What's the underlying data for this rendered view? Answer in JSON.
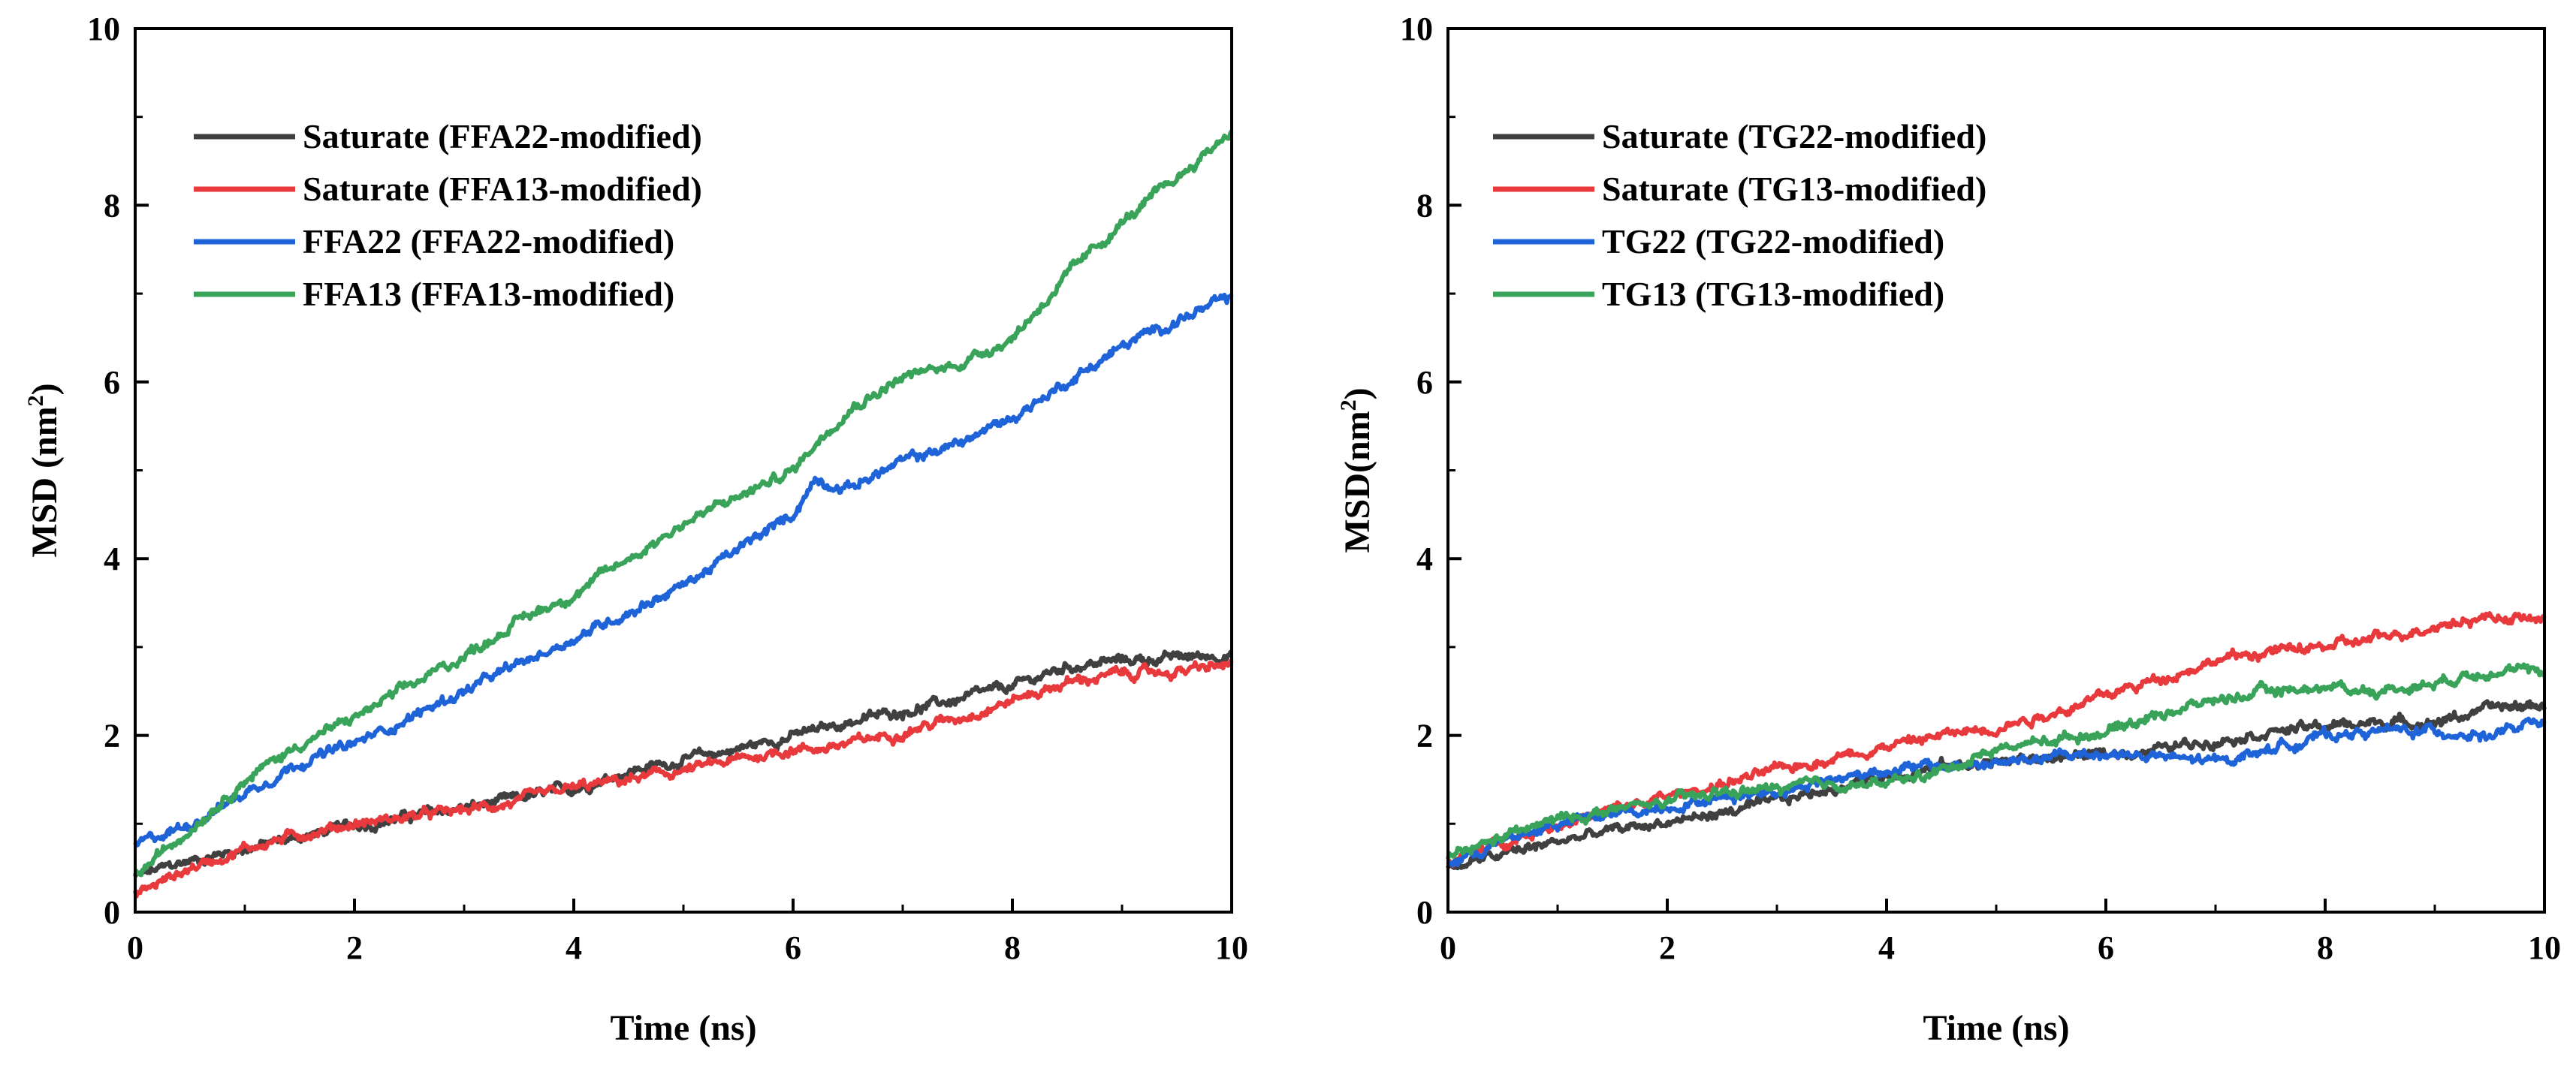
{
  "chart_data": [
    {
      "type": "line",
      "title": "",
      "xlabel": "Time (ns)",
      "ylabel": "MSD (nm",
      "ylabel_sup": "2",
      "ylabel_close": ")",
      "xlim": [
        0,
        10
      ],
      "ylim": [
        0,
        10
      ],
      "xticks": [
        0,
        2,
        4,
        6,
        8,
        10
      ],
      "yticks": [
        0,
        2,
        4,
        6,
        8,
        10
      ],
      "xtick_labels": [
        "0",
        "2",
        "4",
        "6",
        "8",
        "10"
      ],
      "ytick_labels": [
        "0",
        "2",
        "4",
        "6",
        "8",
        "10"
      ],
      "grid": false,
      "legend_position": "top-left",
      "x": [
        0,
        0.5,
        1,
        1.5,
        2,
        2.5,
        3,
        3.5,
        4,
        4.5,
        5,
        5.5,
        6,
        6.2,
        6.5,
        7,
        7.5,
        8,
        8.5,
        9,
        9.5,
        10
      ],
      "series": [
        {
          "name": "Saturate (FFA22-modified)",
          "color": "#404040",
          "values": [
            0.4,
            0.58,
            0.72,
            0.85,
            0.98,
            1.08,
            1.18,
            1.28,
            1.4,
            1.6,
            1.72,
            1.85,
            2.0,
            2.05,
            2.15,
            2.28,
            2.4,
            2.55,
            2.78,
            2.85,
            2.88,
            2.92
          ]
        },
        {
          "name": "Saturate (FFA13-modified)",
          "color": "#e8393c",
          "values": [
            0.2,
            0.5,
            0.72,
            0.88,
            1.0,
            1.08,
            1.15,
            1.25,
            1.4,
            1.5,
            1.6,
            1.72,
            1.85,
            1.85,
            1.9,
            2.05,
            2.2,
            2.4,
            2.6,
            2.7,
            2.72,
            2.8
          ]
        },
        {
          "name": "FFA22 (FFA22-modified)",
          "color": "#1e63d8",
          "values": [
            0.75,
            1.0,
            1.35,
            1.7,
            1.9,
            2.2,
            2.5,
            2.8,
            3.1,
            3.4,
            3.7,
            4.1,
            4.5,
            4.9,
            4.8,
            5.1,
            5.3,
            5.6,
            6.0,
            6.4,
            6.7,
            6.95
          ]
        },
        {
          "name": "FFA13 (FFA13-modified)",
          "color": "#3aa35a",
          "values": [
            0.4,
            0.95,
            1.5,
            1.9,
            2.2,
            2.55,
            2.9,
            3.3,
            3.6,
            4.0,
            4.4,
            4.7,
            5.0,
            5.3,
            5.7,
            6.05,
            6.2,
            6.5,
            7.2,
            7.8,
            8.3,
            8.85
          ]
        }
      ]
    },
    {
      "type": "line",
      "title": "",
      "xlabel": "Time (ns)",
      "ylabel": "MSD(nm",
      "ylabel_sup": "2",
      "ylabel_close": ")",
      "xlim": [
        0,
        10
      ],
      "ylim": [
        0,
        10
      ],
      "xticks": [
        0,
        2,
        4,
        6,
        8,
        10
      ],
      "yticks": [
        0,
        2,
        4,
        6,
        8,
        10
      ],
      "xtick_labels": [
        "0",
        "2",
        "4",
        "6",
        "8",
        "10"
      ],
      "ytick_labels": [
        "0",
        "2",
        "4",
        "6",
        "8",
        "10"
      ],
      "grid": false,
      "legend_position": "top-left",
      "x": [
        0,
        0.5,
        1,
        1.5,
        2,
        2.5,
        3,
        3.5,
        4,
        4.5,
        5,
        5.5,
        6,
        6.5,
        7,
        7.5,
        8,
        8.5,
        9,
        9.5,
        10
      ],
      "series": [
        {
          "name": "Saturate (TG22-modified)",
          "color": "#404040",
          "values": [
            0.5,
            0.65,
            0.8,
            0.92,
            1.02,
            1.12,
            1.25,
            1.4,
            1.55,
            1.65,
            1.7,
            1.75,
            1.78,
            1.85,
            1.95,
            2.05,
            2.1,
            2.15,
            2.15,
            2.3,
            2.35
          ]
        },
        {
          "name": "Saturate (TG13-modified)",
          "color": "#e8393c",
          "values": [
            0.55,
            0.8,
            1.0,
            1.15,
            1.3,
            1.45,
            1.6,
            1.75,
            1.88,
            2.0,
            2.1,
            2.25,
            2.45,
            2.65,
            2.85,
            2.95,
            3.0,
            3.1,
            3.25,
            3.35,
            3.3
          ]
        },
        {
          "name": "TG22 (TG22-modified)",
          "color": "#1e63d8",
          "values": [
            0.55,
            0.8,
            1.0,
            1.1,
            1.2,
            1.3,
            1.38,
            1.5,
            1.62,
            1.65,
            1.68,
            1.75,
            1.8,
            1.75,
            1.7,
            1.85,
            2.0,
            2.05,
            2.05,
            2.0,
            2.15
          ]
        },
        {
          "name": "TG13 (TG13-modified)",
          "color": "#3aa35a",
          "values": [
            0.6,
            0.85,
            1.05,
            1.15,
            1.25,
            1.35,
            1.4,
            1.45,
            1.45,
            1.6,
            1.85,
            1.95,
            2.05,
            2.25,
            2.4,
            2.5,
            2.55,
            2.5,
            2.6,
            2.75,
            2.7
          ]
        }
      ]
    }
  ]
}
